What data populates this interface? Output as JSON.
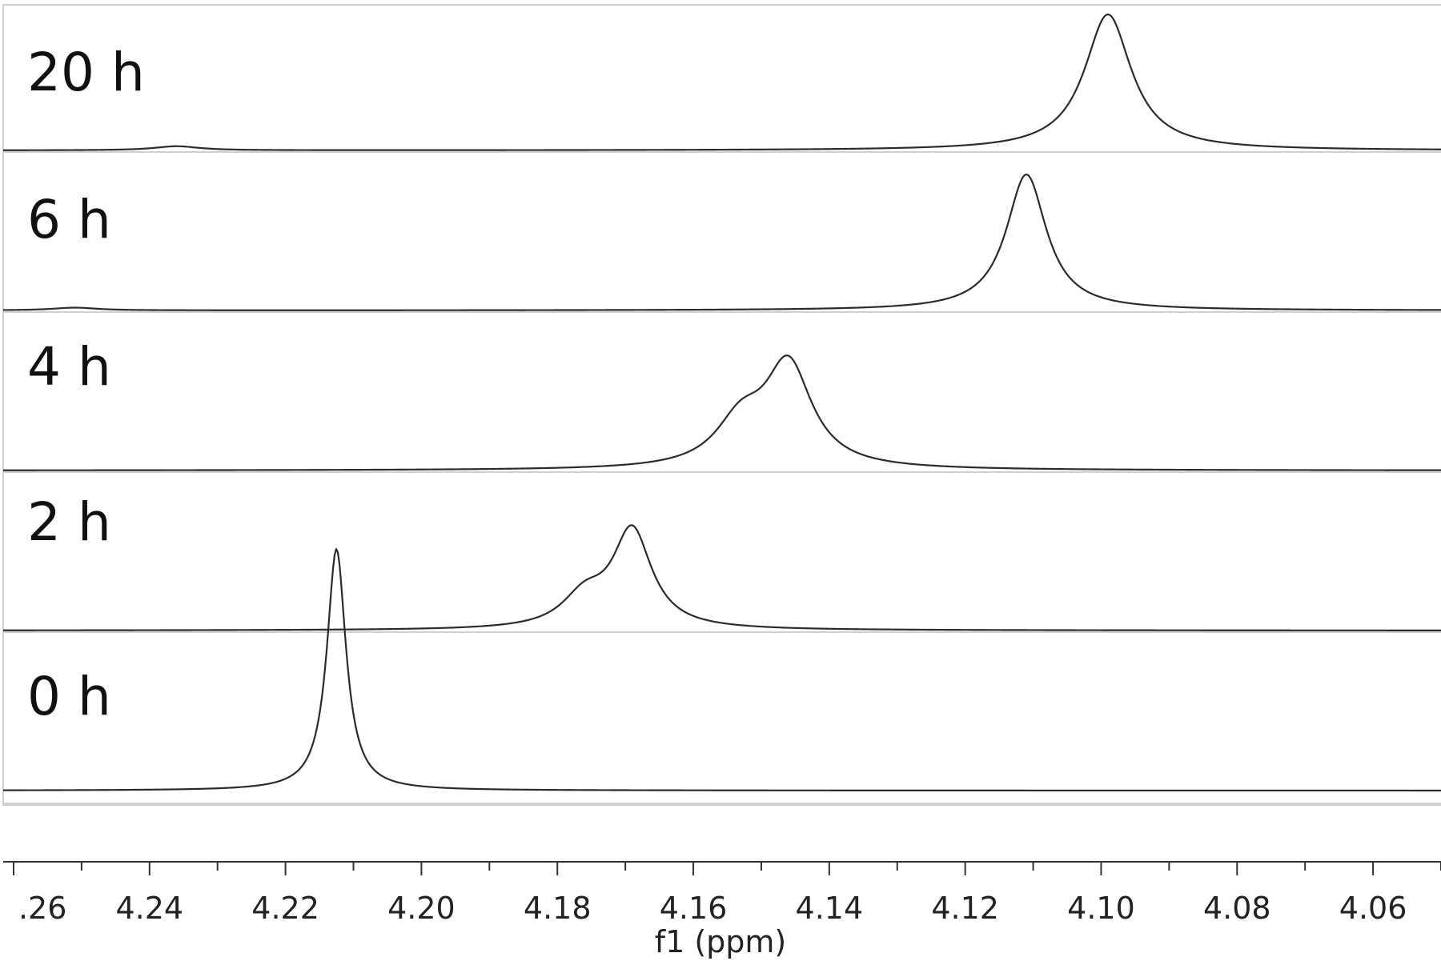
{
  "chart_data": {
    "type": "line",
    "title": "",
    "xlabel": "f1 (ppm)",
    "ylabel": "",
    "xlim": [
      4.262,
      4.05
    ],
    "x_reversed": true,
    "x_ticks_major": [
      4.26,
      4.24,
      4.22,
      4.2,
      4.18,
      4.16,
      4.14,
      4.12,
      4.1,
      4.08,
      4.06
    ],
    "x_tick_labels": [
      ".26",
      "4.24",
      "4.22",
      "4.20",
      "4.18",
      "4.16",
      "4.14",
      "4.12",
      "4.10",
      "4.08",
      "4.06"
    ],
    "grid": false,
    "legend": "none",
    "line_color": "#2b2b2b",
    "series": [
      {
        "label": "20 h",
        "peaks": [
          {
            "center": 4.099,
            "width": 0.0042,
            "height": 1.0
          },
          {
            "center": 4.236,
            "width": 0.004,
            "height": 0.03
          }
        ]
      },
      {
        "label": "6 h",
        "peaks": [
          {
            "center": 4.111,
            "width": 0.0036,
            "height": 1.0
          },
          {
            "center": 4.251,
            "width": 0.004,
            "height": 0.02
          }
        ]
      },
      {
        "label": "4 h",
        "peaks": [
          {
            "center": 4.146,
            "width": 0.0042,
            "height": 0.75
          },
          {
            "center": 4.153,
            "width": 0.0045,
            "height": 0.32
          }
        ]
      },
      {
        "label": "2 h",
        "peaks": [
          {
            "center": 4.169,
            "width": 0.0035,
            "height": 0.72
          },
          {
            "center": 4.176,
            "width": 0.004,
            "height": 0.22
          }
        ]
      },
      {
        "label": "0 h",
        "peaks": [
          {
            "center": 4.2125,
            "width": 0.0017,
            "height": 1.0
          }
        ]
      }
    ]
  }
}
